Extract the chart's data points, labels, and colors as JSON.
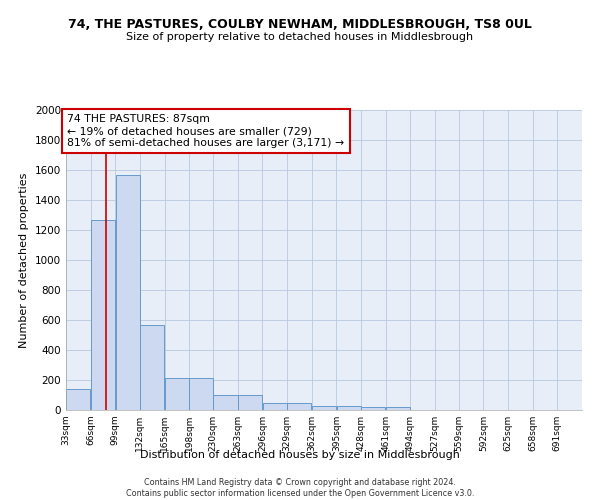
{
  "title": "74, THE PASTURES, COULBY NEWHAM, MIDDLESBROUGH, TS8 0UL",
  "subtitle": "Size of property relative to detached houses in Middlesbrough",
  "xlabel": "Distribution of detached houses by size in Middlesbrough",
  "ylabel": "Number of detached properties",
  "bin_labels": [
    "33sqm",
    "66sqm",
    "99sqm",
    "132sqm",
    "165sqm",
    "198sqm",
    "230sqm",
    "263sqm",
    "296sqm",
    "329sqm",
    "362sqm",
    "395sqm",
    "428sqm",
    "461sqm",
    "494sqm",
    "527sqm",
    "559sqm",
    "592sqm",
    "625sqm",
    "658sqm",
    "691sqm"
  ],
  "bar_values": [
    140,
    1270,
    1570,
    570,
    215,
    215,
    100,
    100,
    50,
    50,
    25,
    25,
    20,
    20,
    0,
    0,
    0,
    0,
    0,
    0,
    0
  ],
  "bar_color": "#ccd9f0",
  "bar_edge_color": "#6699cc",
  "property_line_x": 87,
  "property_line_color": "#cc0000",
  "annotation_text": "74 THE PASTURES: 87sqm\n← 19% of detached houses are smaller (729)\n81% of semi-detached houses are larger (3,171) →",
  "annotation_box_color": "#ffffff",
  "annotation_box_edge": "#cc0000",
  "ylim": [
    0,
    2000
  ],
  "yticks": [
    0,
    200,
    400,
    600,
    800,
    1000,
    1200,
    1400,
    1600,
    1800,
    2000
  ],
  "bg_color": "#e8eef8",
  "footer": "Contains HM Land Registry data © Crown copyright and database right 2024.\nContains public sector information licensed under the Open Government Licence v3.0.",
  "bin_edges": [
    33,
    66,
    99,
    132,
    165,
    198,
    230,
    263,
    296,
    329,
    362,
    395,
    428,
    461,
    494,
    527,
    559,
    592,
    625,
    658,
    691,
    724
  ],
  "title_fontsize": 9,
  "subtitle_fontsize": 8
}
